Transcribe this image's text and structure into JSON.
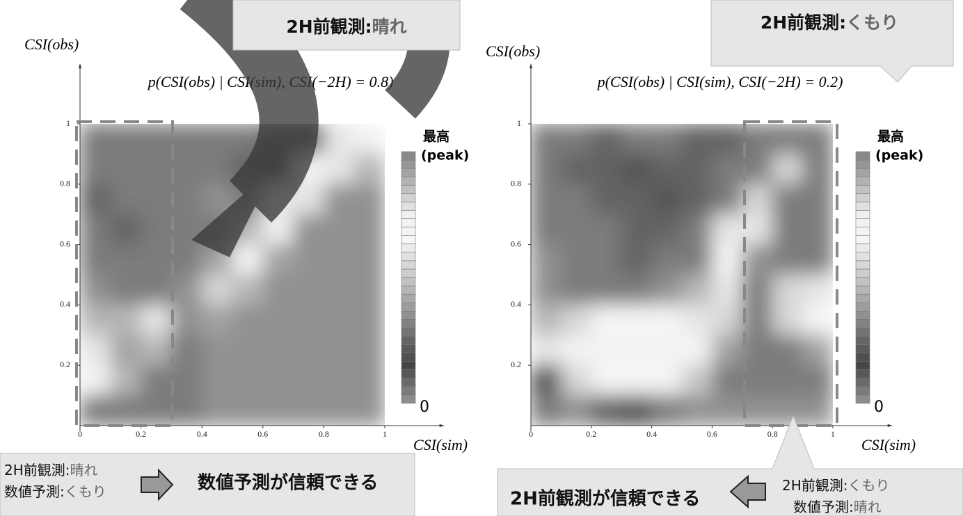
{
  "chart_data": [
    {
      "type": "heatmap",
      "title": "p(CSI(obs) | CSI(sim), CSI(−2H) = 0.8)",
      "x_label": "CSI(sim)",
      "y_label": "CSI(obs)",
      "xlim": [
        0,
        1
      ],
      "ylim": [
        0,
        1
      ],
      "xticks": [
        0,
        0.2,
        0.4,
        0.6,
        0.8,
        1
      ],
      "yticks": [
        0.2,
        0.4,
        0.6,
        0.8,
        1
      ],
      "zlim": [
        0,
        1
      ],
      "zticks": [
        0
      ],
      "colorbar_title": "最高",
      "colorbar_peak_label": "(peak)",
      "z": [
        [
          0.3,
          0.3,
          0.3,
          0.3,
          0.3,
          0.3,
          0.25,
          0.2,
          0.6,
          0.7
        ],
        [
          0.3,
          0.3,
          0.3,
          0.3,
          0.3,
          0.25,
          0.2,
          0.65,
          0.6,
          0.45
        ],
        [
          0.25,
          0.3,
          0.3,
          0.3,
          0.35,
          0.3,
          0.6,
          0.6,
          0.35,
          0.35
        ],
        [
          0.3,
          0.25,
          0.3,
          0.3,
          0.3,
          0.45,
          0.7,
          0.35,
          0.35,
          0.35
        ],
        [
          0.3,
          0.3,
          0.3,
          0.3,
          0.4,
          0.65,
          0.4,
          0.35,
          0.35,
          0.35
        ],
        [
          0.35,
          0.3,
          0.3,
          0.35,
          0.55,
          0.45,
          0.35,
          0.35,
          0.35,
          0.35
        ],
        [
          0.45,
          0.45,
          0.6,
          0.35,
          0.4,
          0.35,
          0.35,
          0.35,
          0.35,
          0.35
        ],
        [
          0.6,
          0.4,
          0.45,
          0.3,
          0.35,
          0.35,
          0.35,
          0.35,
          0.35,
          0.35
        ],
        [
          0.7,
          0.45,
          0.3,
          0.3,
          0.35,
          0.35,
          0.35,
          0.35,
          0.35,
          0.35
        ],
        [
          0.3,
          0.3,
          0.3,
          0.3,
          0.35,
          0.35,
          0.35,
          0.35,
          0.35,
          0.35
        ]
      ]
    },
    {
      "type": "heatmap",
      "title": "p(CSI(obs) | CSI(sim), CSI(−2H) = 0.2)",
      "x_label": "CSI(sim)",
      "y_label": "CSI(obs)",
      "xlim": [
        0,
        1
      ],
      "ylim": [
        0,
        1
      ],
      "xticks": [
        0,
        0.2,
        0.4,
        0.6,
        0.8,
        1
      ],
      "yticks": [
        0.2,
        0.4,
        0.6,
        0.8,
        1
      ],
      "zlim": [
        0,
        1
      ],
      "zticks": [
        0
      ],
      "colorbar_title": "最高",
      "colorbar_peak_label": "(peak)",
      "z": [
        [
          0.3,
          0.3,
          0.25,
          0.3,
          0.3,
          0.25,
          0.25,
          0.3,
          0.3,
          0.3
        ],
        [
          0.3,
          0.25,
          0.25,
          0.2,
          0.25,
          0.25,
          0.3,
          0.3,
          0.55,
          0.3
        ],
        [
          0.3,
          0.3,
          0.25,
          0.25,
          0.2,
          0.25,
          0.3,
          0.55,
          0.3,
          0.3
        ],
        [
          0.3,
          0.3,
          0.3,
          0.25,
          0.25,
          0.3,
          0.6,
          0.6,
          0.3,
          0.3
        ],
        [
          0.35,
          0.3,
          0.3,
          0.25,
          0.3,
          0.3,
          0.65,
          0.35,
          0.3,
          0.3
        ],
        [
          0.35,
          0.3,
          0.3,
          0.3,
          0.35,
          0.45,
          0.6,
          0.3,
          0.55,
          0.6
        ],
        [
          0.45,
          0.55,
          0.65,
          0.65,
          0.65,
          0.6,
          0.55,
          0.3,
          0.55,
          0.65
        ],
        [
          0.6,
          0.7,
          0.7,
          0.7,
          0.7,
          0.65,
          0.4,
          0.3,
          0.3,
          0.4
        ],
        [
          0.2,
          0.55,
          0.65,
          0.65,
          0.65,
          0.5,
          0.3,
          0.3,
          0.3,
          0.3
        ],
        [
          0.3,
          0.35,
          0.25,
          0.2,
          0.3,
          0.35,
          0.35,
          0.35,
          0.35,
          0.35
        ]
      ]
    }
  ],
  "annotations": {
    "top_left_callout": {
      "label": "2H前観測:",
      "value": "晴れ"
    },
    "top_right_callout": {
      "label": "2H前観測:",
      "value": "くもり"
    },
    "bottom_left": {
      "line1": {
        "label": "2H前観測:",
        "value": "晴れ"
      },
      "line2": {
        "label": "数値予測:",
        "value": "くもり"
      },
      "conclusion": "数値予測が信頼できる"
    },
    "bottom_right": {
      "line1": {
        "label": "2H前観測:",
        "value": "くもり"
      },
      "line2": {
        "label": "数値予測:",
        "value": "晴れ"
      },
      "conclusion": "2H前観測が信頼できる"
    }
  }
}
